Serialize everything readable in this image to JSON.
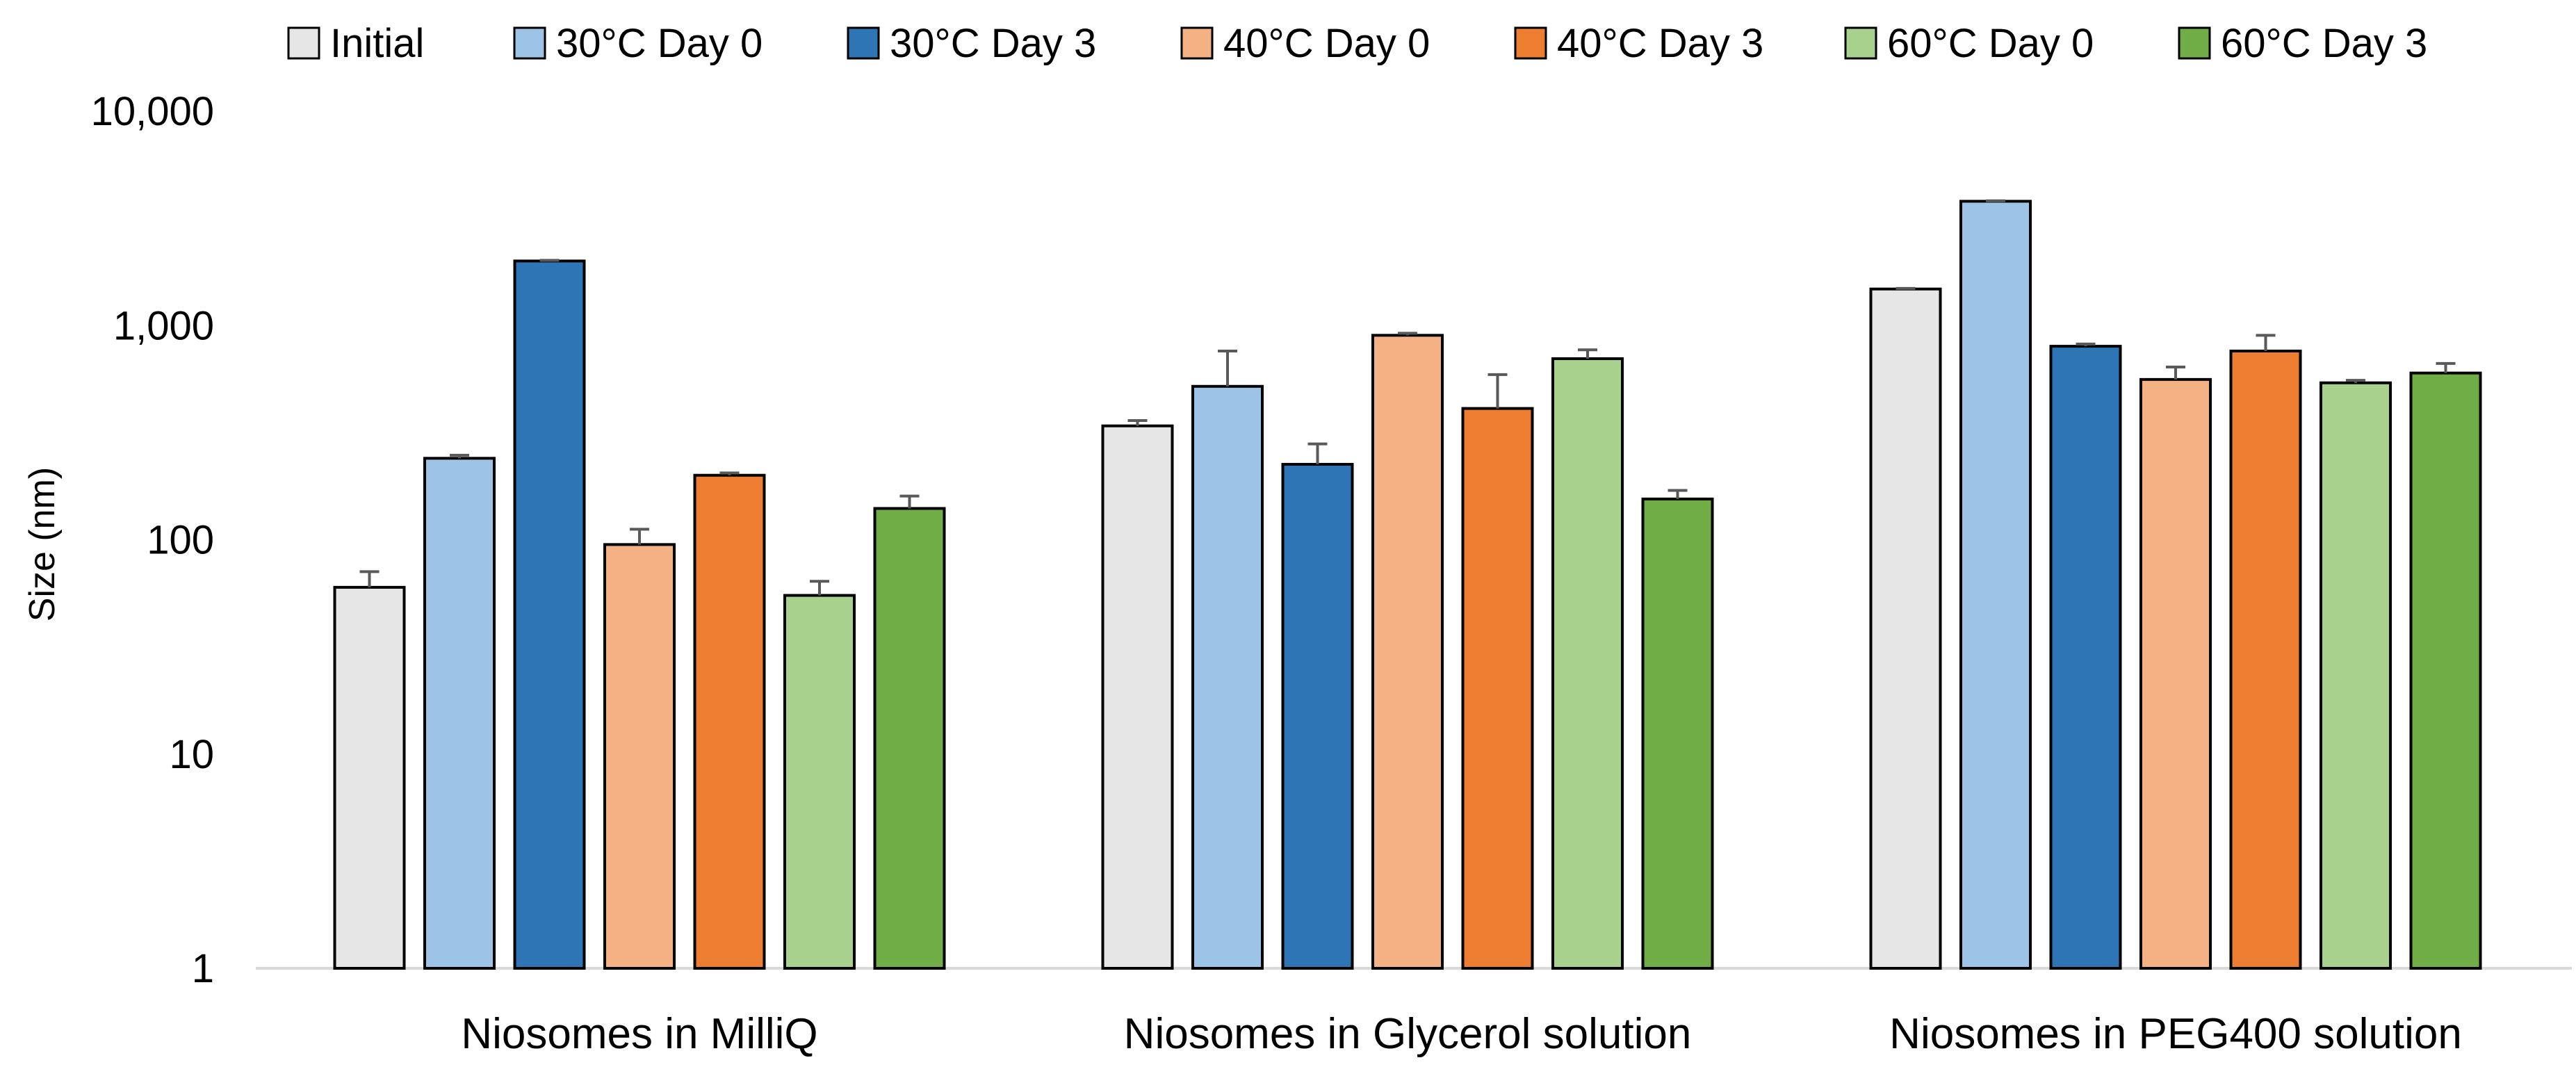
{
  "chart_data": {
    "type": "bar",
    "title": "",
    "xlabel": "",
    "ylabel": "Size (nm)",
    "yscale": "log",
    "ylim": [
      1,
      10000
    ],
    "yticks": [
      1,
      10,
      100,
      1000,
      10000
    ],
    "ytick_labels": [
      "1",
      "10",
      "100",
      "1,000",
      "10,000"
    ],
    "grid": false,
    "legend_position": "top",
    "categories": [
      "Niosomes in MilliQ",
      "Niosomes in Glycerol solution",
      "Niosomes in PEG400 solution"
    ],
    "series": [
      {
        "name": "Initial",
        "color": "#E7E6E6",
        "values": [
          60,
          340,
          1480
        ],
        "errors": [
          11,
          20,
          10
        ]
      },
      {
        "name": "30°C Day 0",
        "color": "#9DC3E6",
        "values": [
          240,
          520,
          3800
        ],
        "errors": [
          8,
          240,
          20
        ]
      },
      {
        "name": "30°C Day 3",
        "color": "#2E75B6",
        "values": [
          2000,
          225,
          800
        ],
        "errors": [
          15,
          55,
          20
        ]
      },
      {
        "name": "40°C Day 0",
        "color": "#F4B183",
        "values": [
          95,
          900,
          560
        ],
        "errors": [
          17,
          20,
          80
        ]
      },
      {
        "name": "40°C Day 3",
        "color": "#ED7D31",
        "values": [
          200,
          410,
          760
        ],
        "errors": [
          5,
          180,
          140
        ]
      },
      {
        "name": "60°C Day 0",
        "color": "#A9D18E",
        "values": [
          55,
          700,
          540
        ],
        "errors": [
          9,
          70,
          15
        ]
      },
      {
        "name": "60°C Day 3",
        "color": "#70AD47",
        "values": [
          140,
          155,
          600
        ],
        "errors": [
          20,
          15,
          65
        ]
      }
    ]
  }
}
